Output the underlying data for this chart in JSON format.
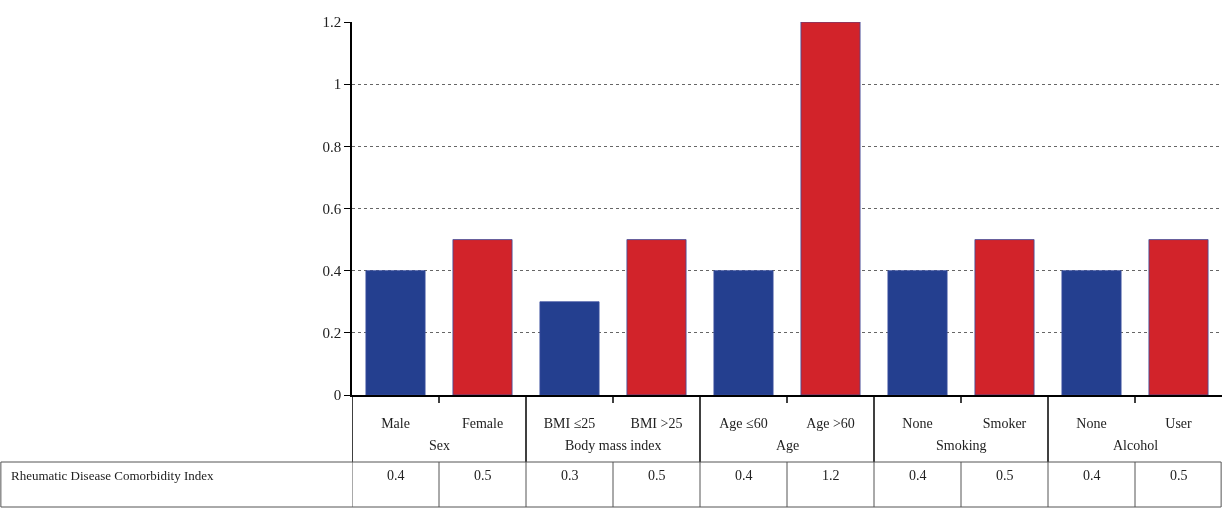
{
  "chart_data": {
    "type": "bar",
    "categories": [
      "Male",
      "Female",
      "BMI ≤25",
      "BMI >25",
      "Age ≤60",
      "Age >60",
      "None",
      "Smoker",
      "None",
      "User"
    ],
    "series": [
      {
        "name": "Rheumatic Disease Comorbidity Index",
        "values": [
          0.4,
          0.5,
          0.3,
          0.5,
          0.4,
          1.2,
          0.4,
          0.5,
          0.4,
          0.5
        ]
      }
    ],
    "colors": [
      "#243f8f",
      "#d2232a",
      "#243f8f",
      "#d2232a",
      "#243f8f",
      "#d2232a",
      "#243f8f",
      "#d2232a",
      "#243f8f",
      "#d2232a"
    ],
    "annotations": [
      "Sex",
      "Body mass index",
      "Age",
      "Smoking",
      "Alcohol"
    ],
    "ylim": [
      0,
      1.2
    ],
    "yticks": [
      0,
      0.2,
      0.4,
      0.6,
      0.8,
      1,
      1.2
    ],
    "grid": "y",
    "data_labels": true,
    "legend": false
  }
}
